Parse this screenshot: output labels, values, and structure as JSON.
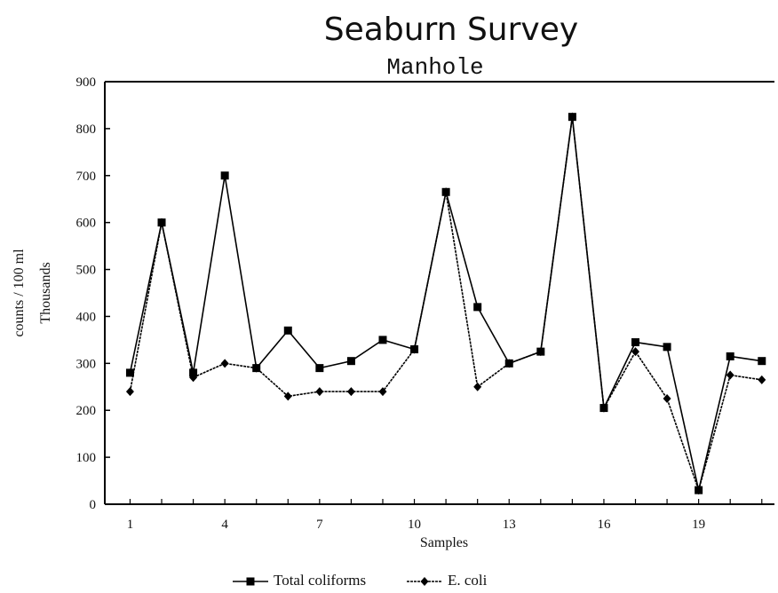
{
  "chart_data": {
    "type": "line",
    "title": "Seaburn Survey",
    "subtitle": "Manhole",
    "xlabel": "Samples",
    "ylabel": "counts / 100 ml",
    "ylabel2": "Thousands",
    "x": [
      1,
      2,
      3,
      4,
      5,
      6,
      7,
      8,
      9,
      10,
      11,
      12,
      13,
      14,
      15,
      16,
      17,
      18,
      19,
      20,
      21
    ],
    "x_tick_labels": [
      "1",
      "4",
      "7",
      "10",
      "13",
      "16",
      "19"
    ],
    "x_tick_values": [
      1,
      4,
      7,
      10,
      13,
      16,
      19
    ],
    "ylim": [
      0,
      900
    ],
    "y_ticks": [
      0,
      100,
      200,
      300,
      400,
      500,
      600,
      700,
      800,
      900
    ],
    "y_tick_labels": [
      "0",
      "100",
      "200",
      "300",
      "400",
      "500",
      "600",
      "700",
      "800",
      "900"
    ],
    "legend_position": "bottom",
    "series": [
      {
        "name": "Total coliforms",
        "marker": "square",
        "values": [
          280,
          600,
          280,
          700,
          290,
          370,
          290,
          305,
          350,
          330,
          665,
          420,
          300,
          325,
          825,
          205,
          345,
          335,
          30,
          315,
          305
        ]
      },
      {
        "name": "E. coli",
        "marker": "diamond",
        "values": [
          240,
          600,
          270,
          300,
          290,
          230,
          240,
          240,
          240,
          330,
          665,
          250,
          300,
          325,
          825,
          205,
          325,
          225,
          30,
          275,
          265
        ]
      }
    ]
  }
}
